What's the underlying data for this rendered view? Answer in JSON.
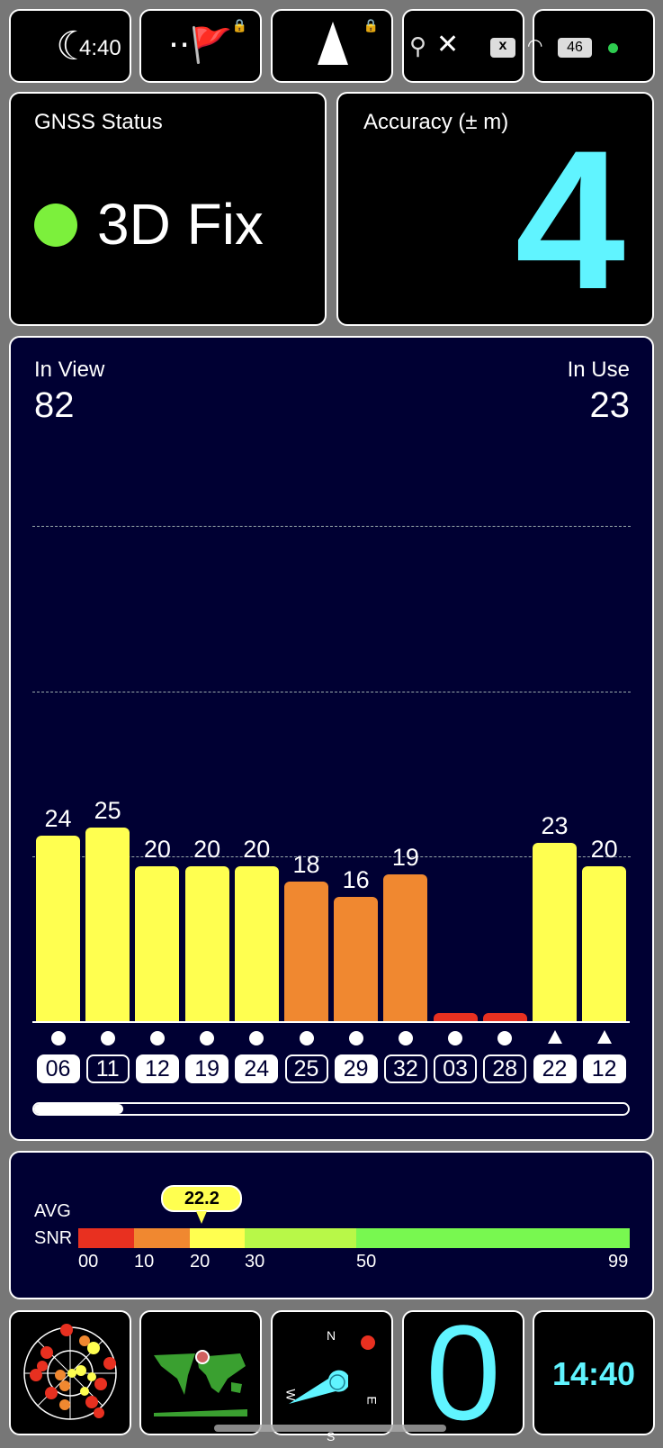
{
  "top_bar": {
    "time": "4:40",
    "tiles": [
      "night-mode",
      "waypoint",
      "navigation",
      "status-icons",
      "signal"
    ],
    "battery": "46"
  },
  "gnss": {
    "title": "GNSS Status",
    "status": "3D Fix",
    "status_color": "#7cf03c"
  },
  "accuracy": {
    "title": "Accuracy (± m)",
    "value": "4",
    "color": "#60f4ff"
  },
  "satellites": {
    "in_view_label": "In View",
    "in_view": "82",
    "in_use_label": "In Use",
    "in_use": "23"
  },
  "chart_data": {
    "type": "bar",
    "categories": [
      "06",
      "11",
      "12",
      "19",
      "24",
      "25",
      "29",
      "32",
      "03",
      "28",
      "22",
      "12"
    ],
    "values": [
      24,
      25,
      20,
      20,
      20,
      18,
      16,
      19,
      1,
      1,
      23,
      20
    ],
    "labels": [
      "24",
      "25",
      "20",
      "20",
      "20",
      "18",
      "16",
      "19",
      "",
      "",
      "23",
      "20"
    ],
    "colors": [
      "#ffff50",
      "#ffff50",
      "#ffff50",
      "#ffff50",
      "#ffff50",
      "#f08830",
      "#f08830",
      "#f08830",
      "#e83020",
      "#e83020",
      "#ffff50",
      "#ffff50"
    ],
    "used": [
      true,
      false,
      true,
      true,
      true,
      false,
      true,
      false,
      false,
      false,
      true,
      true
    ],
    "markers": [
      "circle",
      "circle",
      "circle",
      "circle",
      "circle",
      "circle",
      "circle",
      "circle",
      "circle",
      "circle",
      "triangle",
      "triangle"
    ],
    "scroll_fraction": 0.15
  },
  "snr": {
    "label1": "AVG",
    "label2": "SNR",
    "avg": "22.2",
    "avg_value": 22.2,
    "ticks": [
      "00",
      "10",
      "20",
      "30",
      "50",
      "99"
    ],
    "segments": [
      {
        "from": 0,
        "to": 10,
        "color": "#e83020"
      },
      {
        "from": 10,
        "to": 20,
        "color": "#f08830"
      },
      {
        "from": 20,
        "to": 30,
        "color": "#ffff50"
      },
      {
        "from": 30,
        "to": 50,
        "color": "#b8f848"
      },
      {
        "from": 50,
        "to": 99,
        "color": "#78f850"
      }
    ]
  },
  "bottom": {
    "speed": "0",
    "clock": "14:40",
    "compass": {
      "n": "N",
      "e": "E",
      "s": "S",
      "w": "W"
    }
  }
}
